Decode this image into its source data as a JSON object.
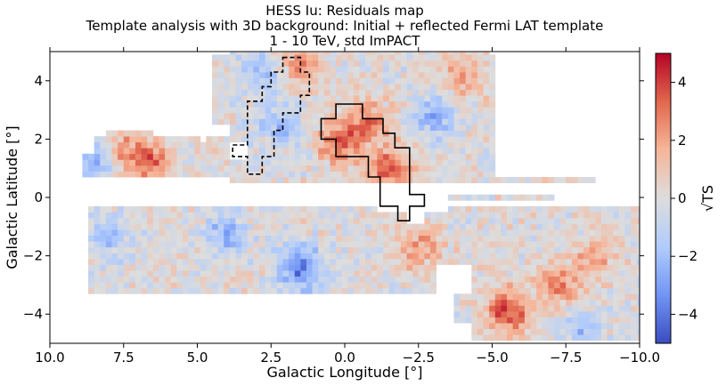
{
  "chart_data": {
    "type": "heatmap",
    "title_lines": [
      "HESS Iu: Residuals map",
      "Template analysis with 3D background: Initial + reflected Fermi LAT template",
      "1 - 10 TeV, std ImPACT"
    ],
    "xlabel": "Galactic Longitude [°]",
    "ylabel": "Galactic Latitude [°]",
    "xlim": [
      10.0,
      -10.0
    ],
    "ylim": [
      -5,
      5
    ],
    "x_ticks": [
      10.0,
      7.5,
      5.0,
      2.5,
      0.0,
      -2.5,
      -5.0,
      -7.5,
      -10.0
    ],
    "x_tick_labels": [
      "10.0",
      "7.5",
      "5.0",
      "2.5",
      "0.0",
      "−2.5",
      "−5.0",
      "−7.5",
      "−10.0"
    ],
    "y_ticks": [
      4,
      2,
      0,
      -2,
      -4
    ],
    "y_tick_labels": [
      "4",
      "2",
      "0",
      "−2",
      "−4"
    ],
    "colorbar": {
      "label": "√TS",
      "range": [
        -5,
        5
      ],
      "ticks": [
        4,
        2,
        0,
        -2,
        -4
      ],
      "tick_labels": [
        "4",
        "2",
        "0",
        "−2",
        "−4"
      ],
      "colormap": "coolwarm",
      "colors": [
        "#3b4cc0",
        "#7396f5",
        "#b0cbfc",
        "#dddddd",
        "#f6b599",
        "#e2694f",
        "#b40426"
      ]
    },
    "hotspots": [
      {
        "l": 0.2,
        "b": 1.9,
        "value": 3.2
      },
      {
        "l": -1.5,
        "b": 1.0,
        "value": 3.6
      },
      {
        "l": -0.8,
        "b": 2.6,
        "value": 2.8
      },
      {
        "l": 6.5,
        "b": 1.2,
        "value": 3.0
      },
      {
        "l": 7.5,
        "b": 1.6,
        "value": 2.2
      },
      {
        "l": 1.5,
        "b": 4.5,
        "value": 2.5
      },
      {
        "l": -5.5,
        "b": -3.9,
        "value": 3.8
      },
      {
        "l": -7.2,
        "b": -3.0,
        "value": 2.6
      },
      {
        "l": -4.0,
        "b": 4.2,
        "value": 2.0
      },
      {
        "l": -2.5,
        "b": -1.7,
        "value": 2.3
      },
      {
        "l": -8.5,
        "b": -2.0,
        "value": 2.0
      },
      {
        "l": -6.5,
        "b": 0.8,
        "value": 1.8
      }
    ],
    "coldspots": [
      {
        "l": 1.5,
        "b": -2.4,
        "value": -3.8
      },
      {
        "l": 8.5,
        "b": 1.2,
        "value": -2.5
      },
      {
        "l": 4.0,
        "b": -1.3,
        "value": -2.3
      },
      {
        "l": -3.0,
        "b": 2.8,
        "value": -2.4
      },
      {
        "l": 2.8,
        "b": 4.3,
        "value": -2.0
      },
      {
        "l": -6.0,
        "b": 1.2,
        "value": -2.2
      },
      {
        "l": 8.0,
        "b": -1.3,
        "value": -1.8
      },
      {
        "l": 2.2,
        "b": 2.4,
        "value": -2.0
      },
      {
        "l": -8.0,
        "b": -4.5,
        "value": -1.8
      }
    ],
    "contour_solid": [
      [
        0.8,
        2.7
      ],
      [
        0.8,
        2.0
      ],
      [
        0.3,
        2.0
      ],
      [
        0.3,
        1.4
      ],
      [
        -0.8,
        1.4
      ],
      [
        -0.8,
        0.7
      ],
      [
        -1.2,
        0.7
      ],
      [
        -1.2,
        -0.3
      ],
      [
        -1.8,
        -0.3
      ],
      [
        -1.8,
        -0.8
      ],
      [
        -2.2,
        -0.8
      ],
      [
        -2.2,
        -0.3
      ],
      [
        -2.7,
        -0.3
      ],
      [
        -2.7,
        0.1
      ],
      [
        -2.2,
        0.1
      ],
      [
        -2.2,
        1.7
      ],
      [
        -1.7,
        1.7
      ],
      [
        -1.7,
        2.2
      ],
      [
        -1.3,
        2.2
      ],
      [
        -1.3,
        2.7
      ],
      [
        -0.6,
        2.7
      ],
      [
        -0.6,
        3.2
      ],
      [
        0.3,
        3.2
      ],
      [
        0.3,
        2.7
      ]
    ],
    "contour_dashed": [
      [
        2.1,
        4.8
      ],
      [
        1.5,
        4.8
      ],
      [
        1.5,
        4.3
      ],
      [
        1.2,
        4.3
      ],
      [
        1.2,
        3.5
      ],
      [
        1.5,
        3.5
      ],
      [
        1.5,
        2.9
      ],
      [
        2.1,
        2.9
      ],
      [
        2.1,
        2.3
      ],
      [
        2.4,
        2.3
      ],
      [
        2.4,
        1.4
      ],
      [
        2.8,
        1.4
      ],
      [
        2.8,
        0.8
      ],
      [
        3.3,
        0.8
      ],
      [
        3.3,
        1.4
      ],
      [
        3.8,
        1.4
      ],
      [
        3.8,
        1.8
      ],
      [
        3.3,
        1.8
      ],
      [
        3.3,
        3.3
      ],
      [
        2.8,
        3.3
      ],
      [
        2.8,
        3.8
      ],
      [
        2.5,
        3.8
      ],
      [
        2.5,
        4.3
      ],
      [
        2.1,
        4.3
      ]
    ]
  }
}
